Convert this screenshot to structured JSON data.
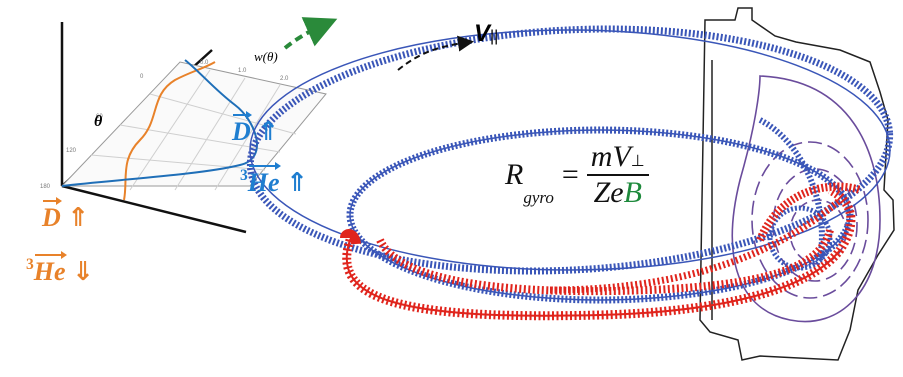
{
  "graph": {
    "theta_label": "θ",
    "w_label": "w(θ)",
    "x_ticks": [
      "0.0",
      "1.0",
      "2.0"
    ],
    "theta_ticks": [
      "180",
      "120",
      "60",
      "0"
    ]
  },
  "species": {
    "d_blue": {
      "symbol": "D",
      "arrow": "⇑",
      "color": "#1f7ed0"
    },
    "he_blue": {
      "mass": "3",
      "symbol": "He",
      "arrow": "⇑",
      "color": "#1f7ed0"
    },
    "d_orange": {
      "symbol": "D",
      "arrow": "⇑",
      "color": "#e8822a"
    },
    "he_orange": {
      "mass": "3",
      "symbol": "He",
      "arrow": "⇓",
      "color": "#e8822a"
    }
  },
  "velocity_label": {
    "letter": "V",
    "subscript": "||"
  },
  "formula": {
    "lhs": "R",
    "lhs_sub": "gyro",
    "eq": "=",
    "num_m": "m",
    "num_v": "V",
    "num_perp": "⊥",
    "den_ze": "Ze",
    "den_b": "B",
    "b_color": "#1e8a3c"
  },
  "colors": {
    "blue_orbit": "#3a56b8",
    "red_orbit": "#e0241c",
    "vessel": "#222222",
    "flux_purple": "#6a4c9c",
    "curve_blue": "#1f6fb8",
    "curve_orange": "#e8822a",
    "w_arrow_green": "#2a8a3a"
  }
}
